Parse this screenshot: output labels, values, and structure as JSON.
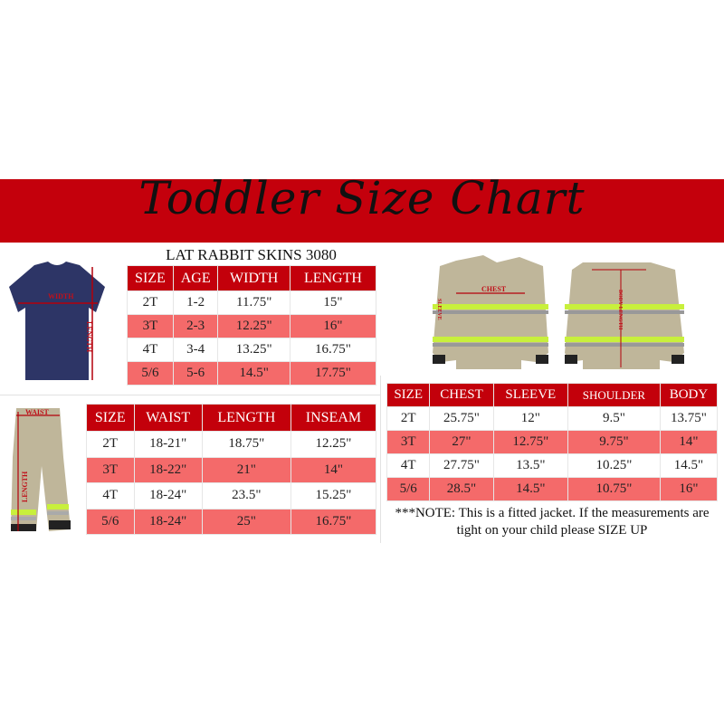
{
  "title": "Toddler Size Chart",
  "shirt": {
    "caption": "LAT RABBIT SKINS  3080",
    "image_labels": [
      "WIDTH",
      "LENGTH"
    ],
    "headers": [
      "SIZE",
      "AGE",
      "WIDTH",
      "LENGTH"
    ],
    "rows": [
      [
        "2T",
        "1-2",
        "11.75\"",
        "15\""
      ],
      [
        "3T",
        "2-3",
        "12.25\"",
        "16\""
      ],
      [
        "4T",
        "3-4",
        "13.25\"",
        "16.75\""
      ],
      [
        "5/6",
        "5-6",
        "14.5\"",
        "17.75\""
      ]
    ]
  },
  "pants": {
    "image_labels": [
      "WAIST",
      "LENGTH"
    ],
    "headers": [
      "SIZE",
      "WAIST",
      "LENGTH",
      "INSEAM"
    ],
    "rows": [
      [
        "2T",
        "18-21\"",
        "18.75\"",
        "12.25\""
      ],
      [
        "3T",
        "18-22\"",
        "21\"",
        "14\""
      ],
      [
        "4T",
        "18-24\"",
        "23.5\"",
        "15.25\""
      ],
      [
        "5/6",
        "18-24\"",
        "25\"",
        "16.75\""
      ]
    ]
  },
  "jacket": {
    "image_labels": [
      "CHEST",
      "SLEEVE",
      "BODY LENGTH"
    ],
    "headers": [
      "SIZE",
      "CHEST",
      "SLEEVE",
      "SHOULDER",
      "BODY"
    ],
    "rows": [
      [
        "2T",
        "25.75\"",
        "12\"",
        "9.5\"",
        "13.75\""
      ],
      [
        "3T",
        "27\"",
        "12.75\"",
        "9.75\"",
        "14\""
      ],
      [
        "4T",
        "27.75\"",
        "13.5\"",
        "10.25\"",
        "14.5\""
      ],
      [
        "5/6",
        "28.5\"",
        "14.5\"",
        "10.75\"",
        "16\""
      ]
    ],
    "note": "***NOTE: This is a fitted jacket. If the measurements are tight on your child please SIZE UP"
  },
  "colors": {
    "banner": "#c4000c",
    "header": "#c3000b",
    "alt_row": "#f46a6a",
    "shirt": "#2d3566",
    "gear": "#bfb69a",
    "reflective": "#c8f03c"
  }
}
